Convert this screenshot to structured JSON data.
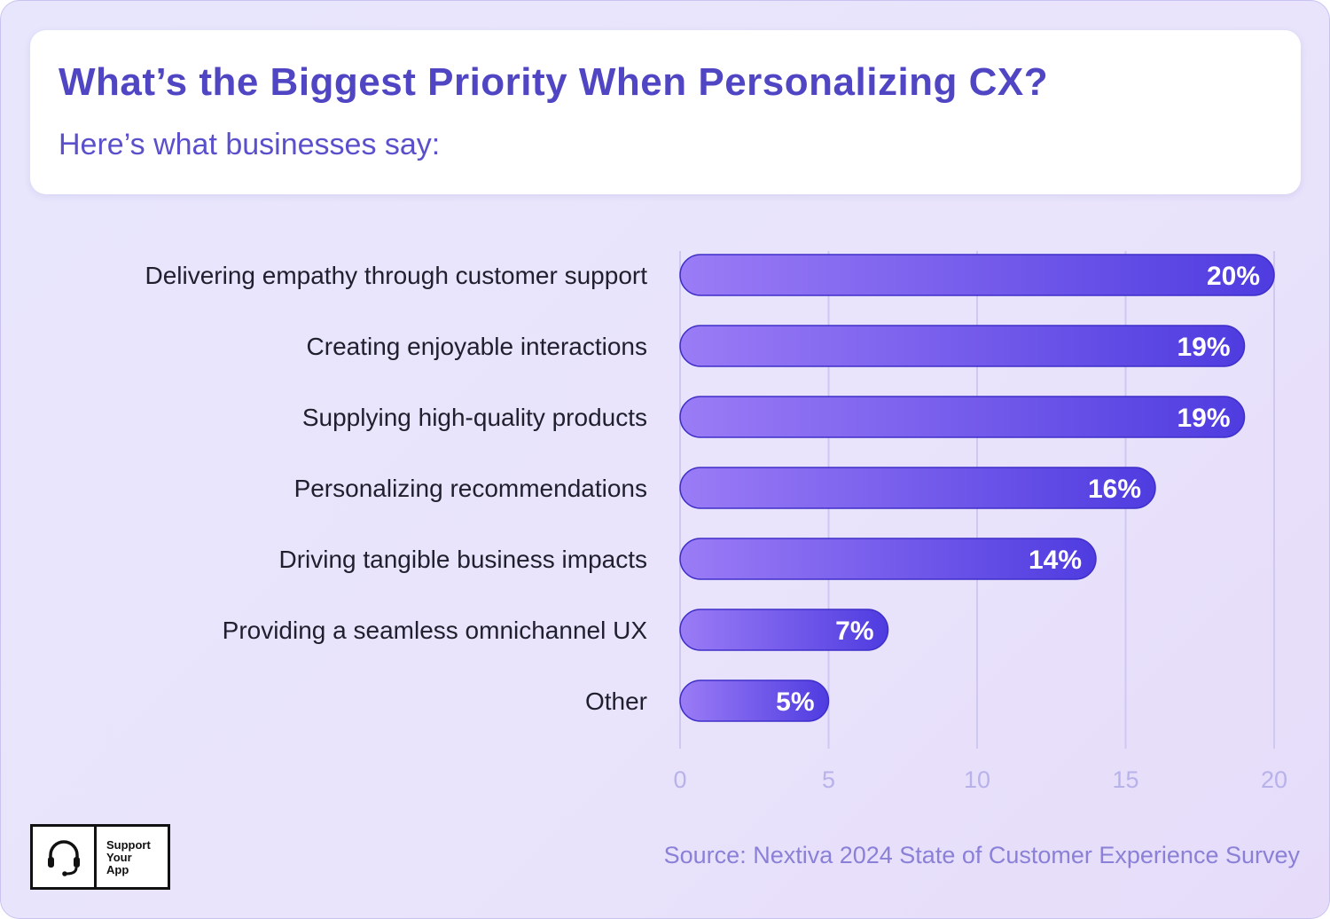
{
  "header": {
    "title": "What’s the Biggest Priority When Personalizing CX?",
    "subtitle": "Here’s what businesses say:"
  },
  "chart_data": {
    "type": "bar",
    "orientation": "horizontal",
    "categories": [
      "Delivering empathy through customer support",
      "Creating enjoyable interactions",
      "Supplying high-quality products",
      "Personalizing recommendations",
      "Driving tangible business impacts",
      "Providing a seamless omnichannel UX",
      "Other"
    ],
    "values": [
      20,
      19,
      19,
      16,
      14,
      7,
      5
    ],
    "value_labels": [
      "20%",
      "19%",
      "19%",
      "16%",
      "14%",
      "7%",
      "5%"
    ],
    "xticks": [
      0,
      5,
      10,
      15,
      20
    ],
    "xlim": [
      0,
      20
    ],
    "grid": true,
    "title": "What’s the Biggest Priority When Personalizing CX?",
    "subtitle": "Here’s what businesses say:",
    "colors": {
      "bar_start": "#9b7cf6",
      "bar_end": "#4f3ce0",
      "bar_border": "#3f2fc9"
    }
  },
  "footer": {
    "source": "Source: Nextiva 2024 State of Customer Experience Survey",
    "logo_lines": [
      "Support",
      "Your",
      "App"
    ],
    "logo_icon": "headset-icon"
  }
}
